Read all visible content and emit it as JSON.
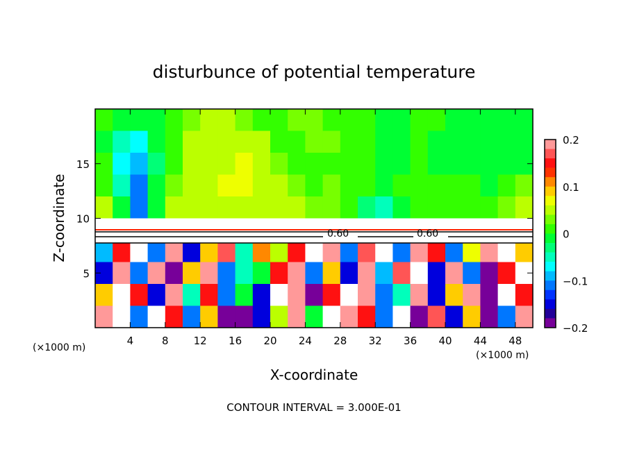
{
  "chart_data": {
    "type": "heatmap",
    "title": "disturbunce of potential temperature",
    "xlabel": "X-coordinate",
    "ylabel": "Z-coordinate",
    "x_unit_left": "(×1000 m)",
    "x_unit_right": "(×1000 m)",
    "footer": "CONTOUR INTERVAL = 3.000E-01",
    "xlim": [
      0,
      50
    ],
    "ylim": [
      0,
      20
    ],
    "xticks": [
      4,
      8,
      12,
      16,
      20,
      24,
      28,
      32,
      36,
      40,
      44,
      48
    ],
    "yticks": [
      5,
      10,
      15
    ],
    "contour_labels": [
      "0.60",
      "0.60"
    ],
    "colorbar": {
      "range": [
        -0.2,
        0.2
      ],
      "tick_values": [
        0.2,
        0.1,
        0,
        -0.1,
        -0.2
      ],
      "tick_labels": [
        "0.2",
        "0.1",
        "0",
        "−0.1",
        "−0.2"
      ],
      "colors_top_to_bottom": [
        "#ff9999",
        "#ff5555",
        "#ff1111",
        "#ff3300",
        "#ff8800",
        "#ffcc00",
        "#eeff00",
        "#bbff00",
        "#77ff00",
        "#33ff00",
        "#00ff33",
        "#00ff77",
        "#00ffbb",
        "#00ffff",
        "#00bbff",
        "#0077ff",
        "#0033ff",
        "#0000dd",
        "#220099",
        "#770099"
      ]
    },
    "grid": {
      "x_centers": [
        1,
        3,
        5,
        7,
        9,
        11,
        13,
        15,
        17,
        19,
        21,
        23,
        25,
        27,
        29,
        31,
        33,
        35,
        37,
        39,
        41,
        43,
        45,
        47,
        49
      ],
      "z_centers": [
        19,
        17,
        15,
        13,
        11,
        9,
        7,
        5,
        3,
        1
      ],
      "cell_width": 2,
      "cell_height": 2,
      "values": [
        [
          0.01,
          0.0,
          -0.02,
          0.0,
          0.02,
          0.03,
          0.04,
          0.04,
          0.03,
          0.02,
          0.02,
          0.03,
          0.03,
          0.02,
          0.01,
          0.01,
          0.0,
          0.0,
          0.01,
          0.01,
          0.0,
          -0.01,
          -0.02,
          -0.02,
          -0.01
        ],
        [
          0.0,
          -0.04,
          -0.06,
          -0.02,
          0.02,
          0.04,
          0.05,
          0.05,
          0.06,
          0.04,
          0.02,
          0.02,
          0.03,
          0.03,
          0.02,
          0.01,
          0.0,
          0.0,
          0.01,
          0.0,
          0.0,
          -0.01,
          -0.02,
          -0.02,
          -0.01
        ],
        [
          0.01,
          -0.06,
          -0.09,
          -0.03,
          0.02,
          0.04,
          0.05,
          0.06,
          0.07,
          0.05,
          0.03,
          0.02,
          0.02,
          0.02,
          0.01,
          0.01,
          0.0,
          0.0,
          0.01,
          0.0,
          0.0,
          0.0,
          -0.01,
          -0.01,
          0.0
        ],
        [
          0.02,
          -0.05,
          -0.1,
          -0.02,
          0.03,
          0.05,
          0.05,
          0.08,
          0.07,
          0.05,
          0.04,
          0.03,
          0.02,
          0.03,
          0.02,
          0.02,
          0.0,
          0.01,
          0.02,
          0.01,
          0.01,
          0.01,
          0.0,
          0.01,
          0.03
        ],
        [
          0.04,
          -0.02,
          -0.1,
          0.0,
          0.04,
          0.05,
          0.06,
          0.06,
          0.05,
          0.04,
          0.04,
          0.04,
          0.03,
          0.03,
          0.01,
          -0.03,
          -0.04,
          0.0,
          0.02,
          0.02,
          0.02,
          0.02,
          0.02,
          0.03,
          0.04
        ],
        [
          null,
          null,
          null,
          null,
          null,
          null,
          null,
          null,
          null,
          null,
          null,
          null,
          null,
          null,
          null,
          null,
          null,
          null,
          null,
          null,
          null,
          null,
          null,
          null,
          null
        ],
        [
          -0.08,
          0.15,
          null,
          -0.1,
          0.2,
          -0.15,
          0.1,
          0.18,
          -0.05,
          0.12,
          0.05,
          0.15,
          null,
          0.2,
          -0.1,
          0.18,
          null,
          -0.12,
          0.2,
          0.15,
          -0.1,
          0.08,
          0.2,
          null,
          0.1
        ],
        [
          -0.15,
          0.2,
          -0.12,
          0.2,
          -0.18,
          0.1,
          0.2,
          -0.1,
          -0.05,
          0.0,
          0.15,
          0.2,
          -0.12,
          0.1,
          -0.15,
          0.2,
          -0.08,
          0.18,
          null,
          -0.15,
          0.2,
          -0.1,
          -0.2,
          0.15,
          null
        ],
        [
          0.1,
          null,
          0.15,
          -0.15,
          0.2,
          -0.05,
          0.15,
          -0.1,
          0.0,
          -0.15,
          null,
          0.2,
          -0.2,
          0.15,
          null,
          0.2,
          -0.1,
          -0.05,
          0.2,
          -0.15,
          0.1,
          0.2,
          -0.2,
          null,
          0.15
        ],
        [
          0.2,
          null,
          -0.1,
          null,
          0.15,
          -0.1,
          0.1,
          -0.2,
          -0.2,
          -0.15,
          0.05,
          0.2,
          0.0,
          null,
          0.2,
          0.15,
          -0.12,
          null,
          -0.2,
          0.18,
          -0.15,
          0.1,
          -0.2,
          -0.1,
          0.2
        ]
      ]
    }
  }
}
